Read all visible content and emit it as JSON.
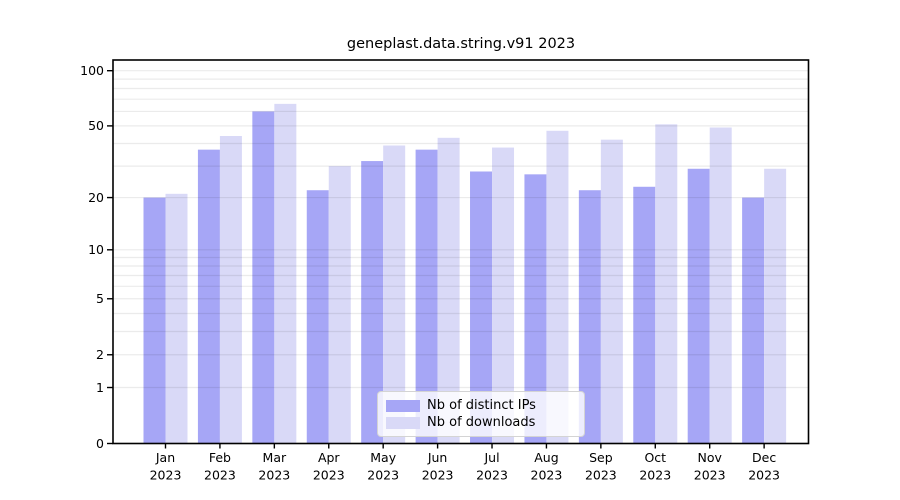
{
  "chart_data": {
    "type": "bar",
    "title": "geneplast.data.string.v91 2023",
    "categories": [
      "Jan",
      "Feb",
      "Mar",
      "Apr",
      "May",
      "Jun",
      "Jul",
      "Aug",
      "Sep",
      "Oct",
      "Nov",
      "Dec"
    ],
    "year": "2023",
    "series": [
      {
        "name": "Nb of distinct IPs",
        "color": "#a6a6f6",
        "values": [
          20,
          37,
          60,
          22,
          32,
          37,
          28,
          27,
          22,
          23,
          29,
          20
        ]
      },
      {
        "name": "Nb of downloads",
        "color": "#d9d9f7",
        "values": [
          21,
          44,
          66,
          30,
          39,
          43,
          38,
          47,
          42,
          51,
          49,
          29
        ]
      }
    ],
    "xlabel": "",
    "ylabel": "",
    "y_scale": "log10(1+v)",
    "y_ticks": [
      0,
      1,
      2,
      5,
      10,
      20,
      50,
      100
    ],
    "grid_values": [
      1,
      2,
      3,
      4,
      5,
      6,
      7,
      8,
      9,
      10,
      20,
      30,
      40,
      50,
      60,
      70,
      80,
      90,
      100
    ],
    "ylim": [
      0,
      115
    ],
    "grid": "on",
    "legend_position": "lower center"
  },
  "colors": {
    "background": "#ffffff",
    "axis": "#000000",
    "grid": "rgba(0,0,0,0.08)",
    "distinct_ips_bar": "#a6a6f6",
    "downloads_bar": "#d9d9f7",
    "legend_background": "rgba(255,255,255,0.8)",
    "legend_border": "#d4d4d4",
    "text": "#000000"
  }
}
